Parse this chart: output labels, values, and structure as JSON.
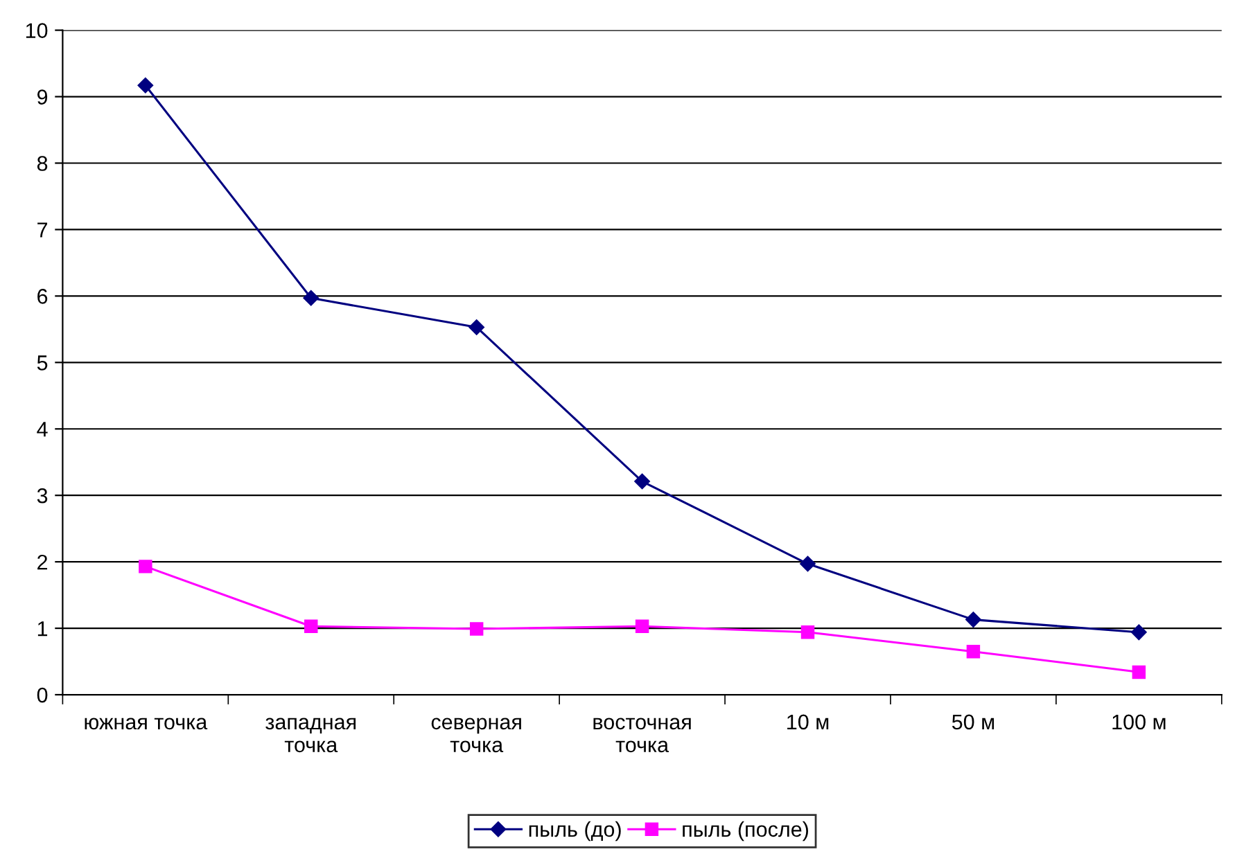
{
  "chart_data": {
    "type": "line",
    "categories": [
      "южная точка",
      "западная точка",
      "северная точка",
      "восточная точка",
      "10 м",
      "50 м",
      "100 м"
    ],
    "series": [
      {
        "name": "пыль (до)",
        "color": "#000080",
        "marker": "diamond",
        "values": [
          9.17,
          5.97,
          5.53,
          3.21,
          1.97,
          1.13,
          0.94
        ]
      },
      {
        "name": "пыль (после)",
        "color": "#ff00ff",
        "marker": "square",
        "values": [
          1.93,
          1.03,
          0.99,
          1.03,
          0.94,
          0.65,
          0.34
        ]
      }
    ],
    "ylim": [
      0,
      10
    ],
    "yticks": [
      0,
      1,
      2,
      3,
      4,
      5,
      6,
      7,
      8,
      9,
      10
    ],
    "grid": "y",
    "legend": "bottom",
    "line_style": "solid"
  }
}
